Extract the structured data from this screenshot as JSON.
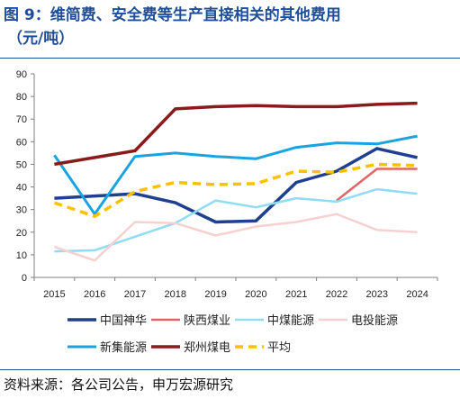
{
  "title": {
    "line1": "图 9：维简费、安全费等生产直接相关的其他费用",
    "line2": "（元/吨）"
  },
  "source": "资料来源：各公司公告，申万宏源研究",
  "chart_data": {
    "type": "line",
    "x": [
      "2015",
      "2016",
      "2017",
      "2018",
      "2019",
      "2020",
      "2021",
      "2022",
      "2023",
      "2024"
    ],
    "ylim": [
      0,
      90
    ],
    "yticks": [
      0,
      10,
      20,
      30,
      40,
      50,
      60,
      70,
      80,
      90
    ],
    "grid": false,
    "legend_position": "bottom",
    "series": [
      {
        "name": "中国神华",
        "color": "#1f3f8f",
        "width": 3.5,
        "dashed": false,
        "values": [
          35,
          36,
          37,
          33,
          24.5,
          25,
          42,
          47,
          57,
          53
        ]
      },
      {
        "name": "陕西煤业",
        "color": "#e06666",
        "width": 2.5,
        "dashed": false,
        "values": [
          null,
          null,
          null,
          null,
          null,
          null,
          null,
          34,
          48,
          48
        ]
      },
      {
        "name": "中煤能源",
        "color": "#8fdcf4",
        "width": 2.5,
        "dashed": false,
        "values": [
          11.5,
          12,
          18,
          24,
          34,
          31,
          35,
          33.5,
          39,
          37
        ]
      },
      {
        "name": "电投能源",
        "color": "#f7d0d0",
        "width": 2.5,
        "dashed": false,
        "values": [
          13.5,
          7.5,
          24.5,
          24,
          18.5,
          22.5,
          24.5,
          28,
          21,
          20
        ]
      },
      {
        "name": "新集能源",
        "color": "#19a3e0",
        "width": 3,
        "dashed": false,
        "values": [
          54,
          28,
          53.5,
          55,
          53.5,
          52.5,
          57.5,
          59.5,
          59,
          62.5
        ]
      },
      {
        "name": "郑州煤电",
        "color": "#8b1a1a",
        "width": 3.5,
        "dashed": false,
        "values": [
          50,
          53,
          56,
          74.5,
          75.5,
          76,
          75.5,
          75.5,
          76.5,
          77
        ]
      },
      {
        "name": "平均",
        "color": "#ffc000",
        "width": 3.5,
        "dashed": true,
        "values": [
          33,
          27,
          38,
          42,
          41,
          41.5,
          47,
          46.5,
          50,
          49.5
        ]
      }
    ]
  }
}
